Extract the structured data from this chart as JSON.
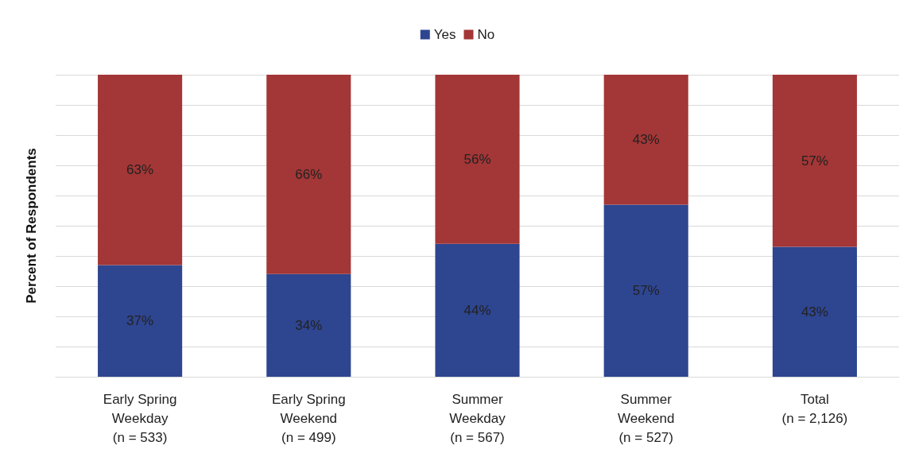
{
  "chart_data": {
    "type": "bar",
    "stacked": true,
    "ylabel": "Percent of Respondents",
    "categories": [
      "Early Spring\nWeekday\n(n = 533)",
      "Early Spring\nWeekend\n(n = 499)",
      "Summer\nWeekday\n(n = 567)",
      "Summer\nWeekend\n(n = 527)",
      "Total\n(n = 2,126)"
    ],
    "series": [
      {
        "name": "Yes",
        "color": "#2e4590",
        "values": [
          37,
          34,
          44,
          57,
          43
        ],
        "value_labels": [
          "37%",
          "34%",
          "44%",
          "57%",
          "43%"
        ]
      },
      {
        "name": "No",
        "color": "#a33636",
        "values": [
          63,
          66,
          56,
          43,
          57
        ],
        "value_labels": [
          "63%",
          "66%",
          "56%",
          "43%",
          "57%"
        ]
      }
    ],
    "tick_labels": "x",
    "grid": "y",
    "legend": "top"
  }
}
